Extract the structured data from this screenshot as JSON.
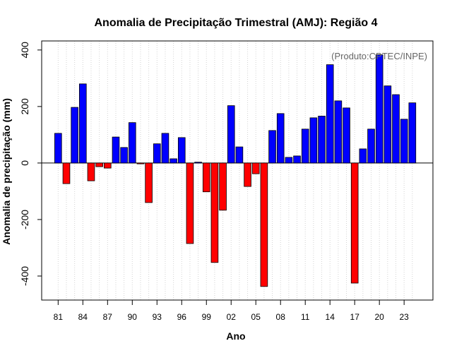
{
  "chart_data": {
    "type": "bar",
    "title": "Anomalia de Precipitação Trimestral (AMJ): Região 4",
    "xlabel": "Ano",
    "ylabel": "Anomalia de precipitação (mm)",
    "annotation": "(Produto:CPTEC/INPE)",
    "ylim": [
      -485,
      432
    ],
    "yticks": [
      400,
      200,
      0,
      -200,
      -400
    ],
    "ytick_labels": [
      "400",
      "200",
      "0",
      "-200",
      "-400"
    ],
    "xtick_labels": [
      "81",
      "84",
      "87",
      "90",
      "93",
      "96",
      "99",
      "02",
      "05",
      "08",
      "11",
      "14",
      "17",
      "20",
      "23"
    ],
    "xtick_years": [
      1981,
      1984,
      1987,
      1990,
      1993,
      1996,
      1999,
      2002,
      2005,
      2008,
      2011,
      2014,
      2017,
      2020,
      2023
    ],
    "grid": true,
    "positive_color": "#0000ff",
    "negative_color": "#ff0000",
    "years": [
      1981,
      1982,
      1983,
      1984,
      1985,
      1986,
      1987,
      1988,
      1989,
      1990,
      1991,
      1992,
      1993,
      1994,
      1995,
      1996,
      1997,
      1998,
      1999,
      2000,
      2001,
      2002,
      2003,
      2004,
      2005,
      2006,
      2007,
      2008,
      2009,
      2010,
      2011,
      2012,
      2013,
      2014,
      2015,
      2016,
      2017,
      2018,
      2019,
      2020,
      2021,
      2022,
      2023,
      2024
    ],
    "values": [
      105,
      -73,
      197,
      280,
      -63,
      -13,
      -18,
      92,
      55,
      143,
      -3,
      -140,
      68,
      105,
      15,
      90,
      -285,
      3,
      -102,
      -352,
      -167,
      203,
      57,
      -83,
      -38,
      -437,
      115,
      175,
      20,
      25,
      120,
      160,
      166,
      348,
      220,
      195,
      -425,
      50,
      120,
      383,
      273,
      242,
      155,
      213
    ]
  }
}
